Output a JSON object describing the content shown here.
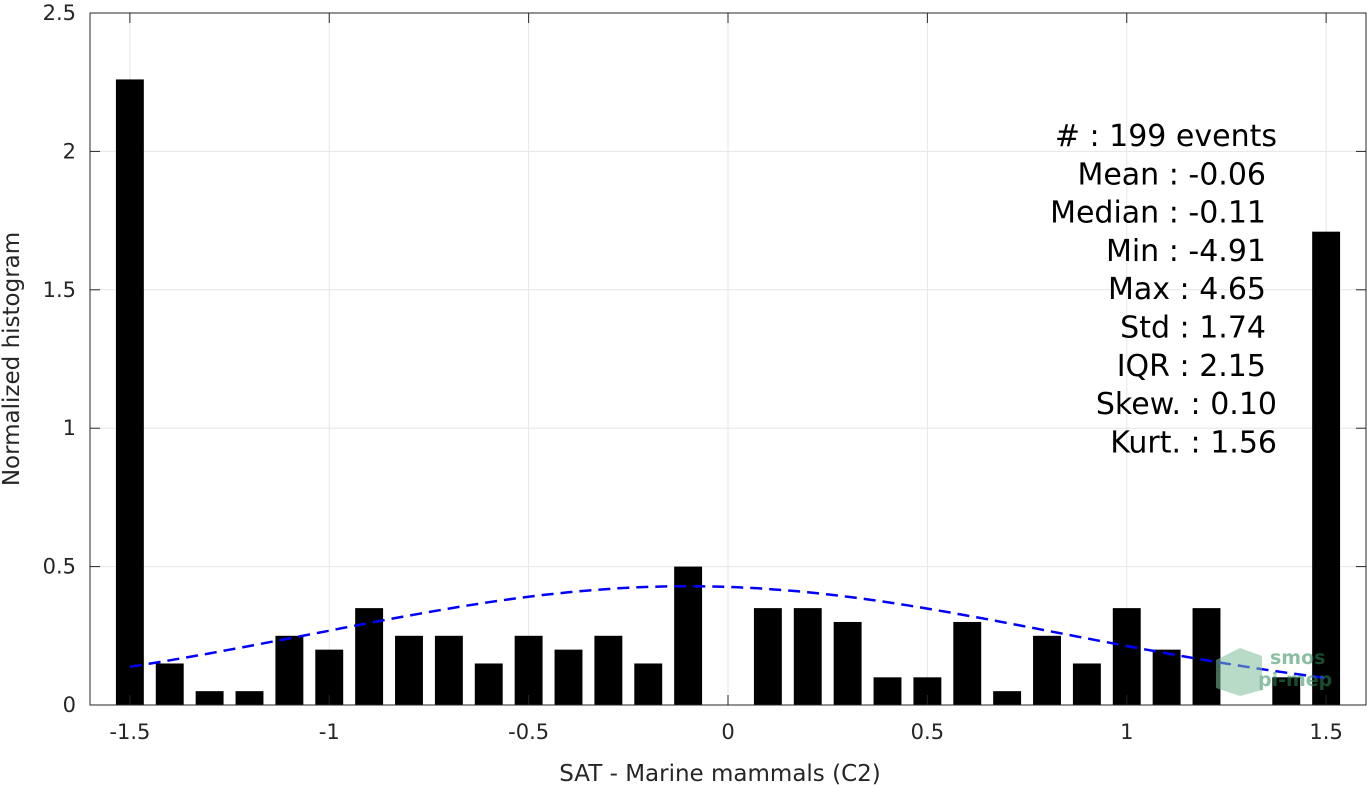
{
  "chart_data": {
    "type": "bar",
    "title": "",
    "xlabel": "SAT - Marine mammals (C2)",
    "ylabel": "Normalized histogram",
    "xlim": [
      -1.6,
      1.6
    ],
    "ylim": [
      0,
      2.5
    ],
    "x_ticks": [
      -1.5,
      -1,
      -0.5,
      0,
      0.5,
      1,
      1.5
    ],
    "x_tick_labels": [
      "-1.5",
      "-1",
      "-0.5",
      "0",
      "0.5",
      "1",
      "1.5"
    ],
    "y_ticks": [
      0,
      0.5,
      1,
      1.5,
      2,
      2.5
    ],
    "y_tick_labels": [
      "0",
      "0.5",
      "1",
      "1.5",
      "2",
      "2.5"
    ],
    "grid": true,
    "bar_width": 0.07,
    "bar_color": "#000000",
    "bars": [
      {
        "x": -1.5,
        "value": 2.26
      },
      {
        "x": -1.4,
        "value": 0.15
      },
      {
        "x": -1.3,
        "value": 0.05
      },
      {
        "x": -1.2,
        "value": 0.05
      },
      {
        "x": -1.1,
        "value": 0.25
      },
      {
        "x": -1.0,
        "value": 0.2
      },
      {
        "x": -0.9,
        "value": 0.35
      },
      {
        "x": -0.8,
        "value": 0.25
      },
      {
        "x": -0.7,
        "value": 0.25
      },
      {
        "x": -0.6,
        "value": 0.15
      },
      {
        "x": -0.5,
        "value": 0.25
      },
      {
        "x": -0.4,
        "value": 0.2
      },
      {
        "x": -0.3,
        "value": 0.25
      },
      {
        "x": -0.2,
        "value": 0.15
      },
      {
        "x": -0.1,
        "value": 0.5
      },
      {
        "x": 0.0,
        "value": 0.0
      },
      {
        "x": 0.1,
        "value": 0.35
      },
      {
        "x": 0.2,
        "value": 0.35
      },
      {
        "x": 0.3,
        "value": 0.3
      },
      {
        "x": 0.4,
        "value": 0.1
      },
      {
        "x": 0.5,
        "value": 0.1
      },
      {
        "x": 0.6,
        "value": 0.3
      },
      {
        "x": 0.7,
        "value": 0.05
      },
      {
        "x": 0.8,
        "value": 0.25
      },
      {
        "x": 0.9,
        "value": 0.15
      },
      {
        "x": 1.0,
        "value": 0.35
      },
      {
        "x": 1.1,
        "value": 0.2
      },
      {
        "x": 1.2,
        "value": 0.35
      },
      {
        "x": 1.4,
        "value": 0.1
      },
      {
        "x": 1.5,
        "value": 1.71
      }
    ],
    "fit_curve": {
      "style": "dashed",
      "color": "#0000ff",
      "mean": -0.1,
      "std": 0.93,
      "x_range": [
        -1.5,
        1.5
      ]
    },
    "stats": [
      "#  : 199 events",
      "Mean : -0.06",
      "Median : -0.11",
      "Min : -4.91",
      "Max : 4.65",
      "Std : 1.74",
      "IQR : 2.15",
      "Skew. : 0.10",
      "Kurt. : 1.56"
    ],
    "logo": {
      "line1": "smos",
      "line2": "pi-mep",
      "color": "#2e8b57"
    }
  }
}
